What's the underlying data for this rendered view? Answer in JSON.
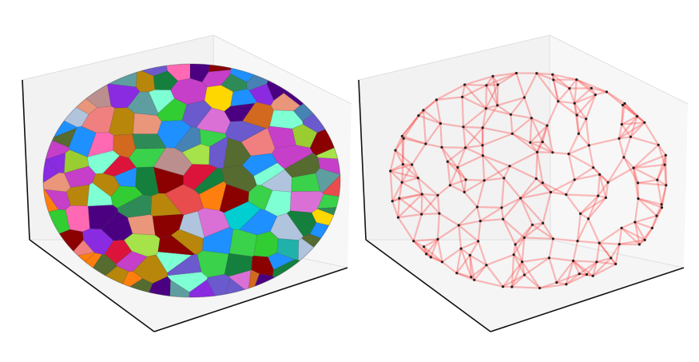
{
  "figure": {
    "panels": [
      {
        "id": "voronoi-sphere",
        "kind": "colored-voronoi-cells"
      },
      {
        "id": "delaunay-sphere",
        "kind": "wireframe-graph"
      }
    ]
  },
  "colors": {
    "pane_back": "#f2f2f2",
    "pane_floor": "#f5f5f5",
    "pane_edge": "#e0e0e0",
    "axis": "#111111",
    "edge": "#ff4040",
    "node": "#222222",
    "cell_palette": [
      "#3ad24b",
      "#c63fc9",
      "#2f7a2f",
      "#e84c4c",
      "#3a70e6",
      "#a6e34a",
      "#b0c4de",
      "#15803d",
      "#ff7f0e",
      "#8a2be2",
      "#20b2aa",
      "#dc143c",
      "#ffd700",
      "#4b0082",
      "#7fffd4",
      "#d2691e",
      "#f08080",
      "#6a5acd",
      "#2e8b57",
      "#ff69b4",
      "#1e90ff",
      "#9acd32",
      "#8b0000",
      "#00ced1",
      "#bc8f8f",
      "#556b2f",
      "#e9967a",
      "#4682b4",
      "#da70d6",
      "#32cd32",
      "#b8860b",
      "#5f9ea0"
    ]
  }
}
